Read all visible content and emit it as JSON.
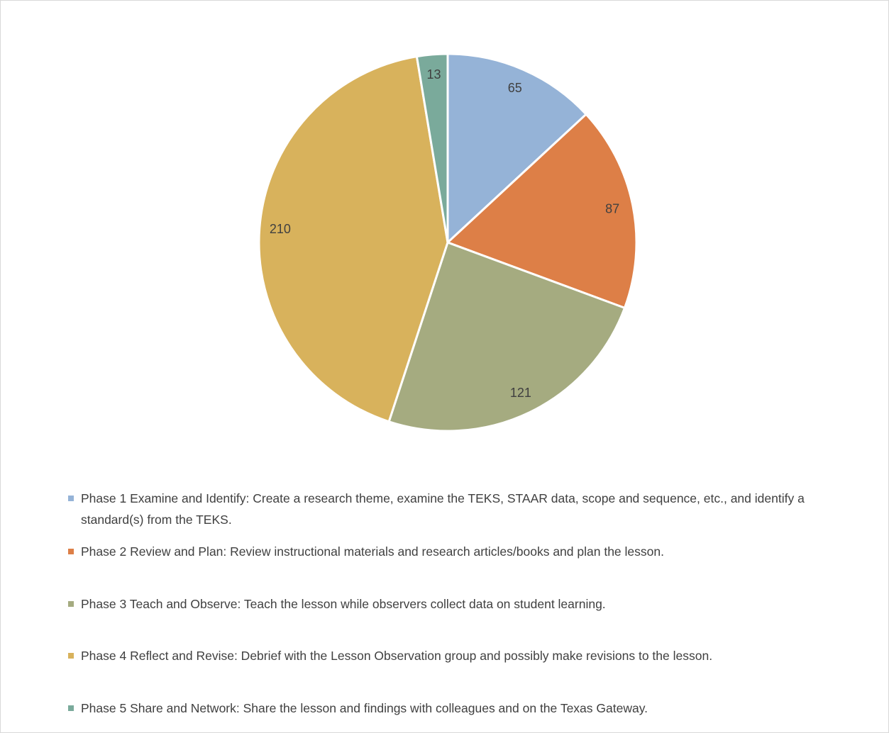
{
  "chart_data": {
    "type": "pie",
    "categories": [
      "Phase 1 Examine and Identify: Create a research theme, examine the TEKS, STAAR data, scope and sequence, etc., and identify a standard(s) from the TEKS.",
      "Phase 2 Review and Plan: Review instructional materials and research articles/books and plan the lesson.",
      "Phase 3 Teach and Observe: Teach the lesson while observers collect data on student learning.",
      "Phase 4 Reflect and Revise: Debrief with the Lesson Observation group and possibly make revisions to the lesson.",
      "Phase 5 Share and Network: Share the lesson and findings with colleagues and on the Texas Gateway."
    ],
    "values": [
      65,
      87,
      121,
      210,
      13
    ],
    "colors": [
      "#95b3d7",
      "#dd7f47",
      "#a5ab80",
      "#d8b25c",
      "#7aaa9b"
    ],
    "legend": "bottom"
  }
}
